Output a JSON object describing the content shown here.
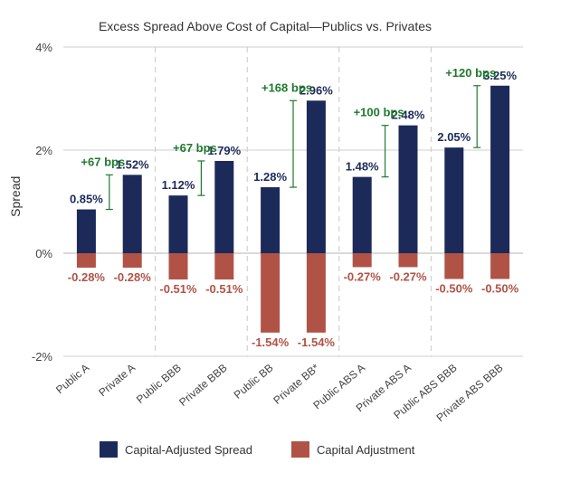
{
  "chart_data": {
    "type": "bar",
    "title": "Excess Spread Above Cost of Capital—Publics vs. Privates",
    "ylabel": "Spread",
    "xlabel": "",
    "ylim": [
      -2,
      4
    ],
    "yticks": [
      -2,
      0,
      2,
      4
    ],
    "ytick_labels": [
      "-2%",
      "0%",
      "2%",
      "4%"
    ],
    "categories": [
      "Public A",
      "Private A",
      "Public BBB",
      "Private BBB",
      "Public BB",
      "Private BB*",
      "Public ABS A",
      "Private ABS A",
      "Public ABS BBB",
      "Private ABS BBB"
    ],
    "series": [
      {
        "name": "Capital-Adjusted Spread",
        "color": "#1c2a5a",
        "values": [
          0.85,
          1.52,
          1.12,
          1.79,
          1.28,
          2.96,
          1.48,
          2.48,
          2.05,
          3.25
        ],
        "labels": [
          "0.85%",
          "1.52%",
          "1.12%",
          "1.79%",
          "1.28%",
          "2.96%",
          "1.48%",
          "2.48%",
          "2.05%",
          "3.25%"
        ]
      },
      {
        "name": "Capital Adjustment",
        "color": "#b05346",
        "values": [
          -0.28,
          -0.28,
          -0.51,
          -0.51,
          -1.54,
          -1.54,
          -0.27,
          -0.27,
          -0.5,
          -0.5
        ],
        "labels": [
          "-0.28%",
          "-0.28%",
          "-0.51%",
          "-0.51%",
          "-1.54%",
          "-1.54%",
          "-0.27%",
          "-0.27%",
          "-0.50%",
          "-0.50%"
        ]
      }
    ],
    "annotations": [
      {
        "text": "+67 bps",
        "from": 0.85,
        "to": 1.52,
        "pair": 0
      },
      {
        "text": "+67 bps",
        "from": 1.12,
        "to": 1.79,
        "pair": 1
      },
      {
        "text": "+168 bps",
        "from": 1.28,
        "to": 2.96,
        "pair": 2
      },
      {
        "text": "+100 bps",
        "from": 1.48,
        "to": 2.48,
        "pair": 3
      },
      {
        "text": "+120 bps",
        "from": 2.05,
        "to": 3.25,
        "pair": 4
      }
    ],
    "annotation_color": "#1e7a2e",
    "grid": true,
    "legend_position": "bottom"
  }
}
